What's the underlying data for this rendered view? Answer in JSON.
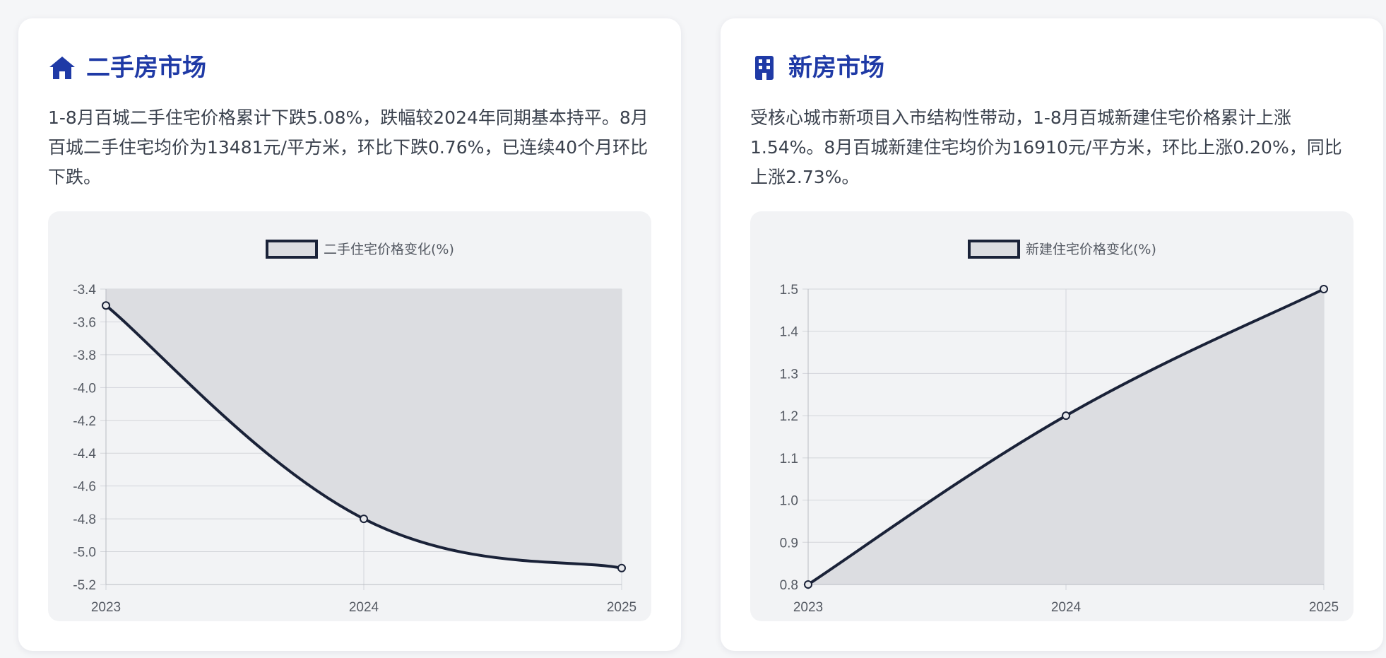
{
  "cards": [
    {
      "title": "二手房市场",
      "icon": "house-icon",
      "text": "1-8月百城二手住宅价格累计下跌5.08%，跌幅较2024年同期基本持平。8月百城二手住宅均价为13481元/平方米，环比下跌0.76%，已连续40个月环比下跌。"
    },
    {
      "title": "新房市场",
      "icon": "building-icon",
      "text": "受核心城市新项目入市结构性带动，1-8月百城新建住宅价格累计上涨1.54%。8月百城新建住宅均价为16910元/平方米，环比上涨0.20%，同比上涨2.73%。"
    }
  ],
  "colors": {
    "title": "#1f3aa6",
    "line": "#1a2238",
    "fill": "#dcdde1",
    "grid": "#d3d5da",
    "card_bg": "#ffffff",
    "chart_bg": "#f2f3f5"
  },
  "chart_data": [
    {
      "type": "area",
      "categories": [
        "2023",
        "2024",
        "2025"
      ],
      "series": [
        {
          "name": "二手住宅价格变化(%)",
          "values": [
            -3.5,
            -4.8,
            -5.1
          ]
        }
      ],
      "yticks": [
        "-3.4",
        "-3.6",
        "-3.8",
        "-4.0",
        "-4.2",
        "-4.4",
        "-4.6",
        "-4.8",
        "-5.0",
        "-5.2"
      ],
      "ylim": [
        -5.2,
        -3.4
      ],
      "fill_to": "top",
      "grid": true,
      "legend": "top-center"
    },
    {
      "type": "area",
      "categories": [
        "2023",
        "2024",
        "2025"
      ],
      "series": [
        {
          "name": "新建住宅价格变化(%)",
          "values": [
            0.8,
            1.2,
            1.5
          ]
        }
      ],
      "yticks": [
        "0.8",
        "0.9",
        "1.0",
        "1.1",
        "1.2",
        "1.3",
        "1.4",
        "1.5"
      ],
      "ylim": [
        0.8,
        1.5
      ],
      "fill_to": "bottom",
      "grid": true,
      "legend": "top-center"
    }
  ]
}
